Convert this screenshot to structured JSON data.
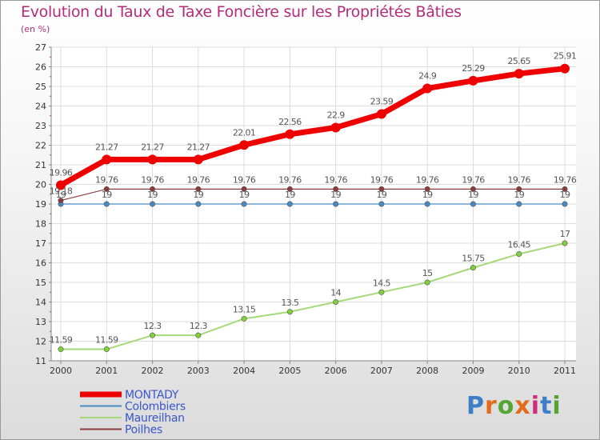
{
  "header": {
    "title": "Evolution du Taux de Taxe Foncière sur les Propriétés Bâties",
    "unit_note": "(en %)"
  },
  "logo": {
    "text": "Proxiti",
    "colors": [
      "#3c7fc6",
      "#e26b1c",
      "#55a532",
      "#e26b1c",
      "#cc2f7a",
      "#3c7fc6",
      "#55a532"
    ]
  },
  "chart_data": {
    "type": "line",
    "title": "Evolution du Taux de Taxe Foncière sur les Propriétés Bâties",
    "ylabel": "(en %)",
    "xlabel": "",
    "x": [
      "2000",
      "2001",
      "2002",
      "2003",
      "2004",
      "2005",
      "2006",
      "2007",
      "2008",
      "2009",
      "2010",
      "2011"
    ],
    "ylim": [
      11,
      27
    ],
    "yticks": [
      "11",
      "12",
      "13",
      "14",
      "15",
      "16",
      "17",
      "18",
      "19",
      "20",
      "21",
      "22",
      "23",
      "24",
      "25",
      "26",
      "27"
    ],
    "grid": true,
    "legend": "bottom-left",
    "series": [
      {
        "name": "MONTADY",
        "color": "#ee0000",
        "emphasis": true,
        "values": [
          19.96,
          21.27,
          21.27,
          21.27,
          22.01,
          22.56,
          22.9,
          23.59,
          24.9,
          25.29,
          25.65,
          25.91
        ],
        "labels": [
          "19.96",
          "21.27",
          "21.27",
          "21.27",
          "22.01",
          "22.56",
          "22.9",
          "23.59",
          "24.9",
          "25.29",
          "25.65",
          "25.91"
        ]
      },
      {
        "name": "Colombiers",
        "color": "#4a8ac4",
        "values": [
          19,
          19,
          19,
          19,
          19,
          19,
          19,
          19,
          19,
          19,
          19,
          19
        ],
        "labels": [
          "19",
          "19",
          "19",
          "19",
          "19",
          "19",
          "19",
          "19",
          "19",
          "19",
          "19",
          "19"
        ]
      },
      {
        "name": "Maureilhan",
        "color": "#a6d979",
        "marker": "#7fd23c",
        "values": [
          11.59,
          11.59,
          12.3,
          12.3,
          13.15,
          13.5,
          14,
          14.5,
          15,
          15.75,
          16.45,
          17
        ],
        "labels": [
          "11.59",
          "11.59",
          "12.3",
          "12.3",
          "13.15",
          "13.5",
          "14",
          "14.5",
          "15",
          "15.75",
          "16.45",
          "17"
        ]
      },
      {
        "name": "Poilhes",
        "color": "#8a3c3c",
        "values": [
          19.18,
          19.76,
          19.76,
          19.76,
          19.76,
          19.76,
          19.76,
          19.76,
          19.76,
          19.76,
          19.76,
          19.76
        ],
        "labels": [
          "19.18",
          "19.76",
          "19.76",
          "19.76",
          "19.76",
          "19.76",
          "19.76",
          "19.76",
          "19.76",
          "19.76",
          "19.76",
          "19.76"
        ]
      }
    ]
  }
}
